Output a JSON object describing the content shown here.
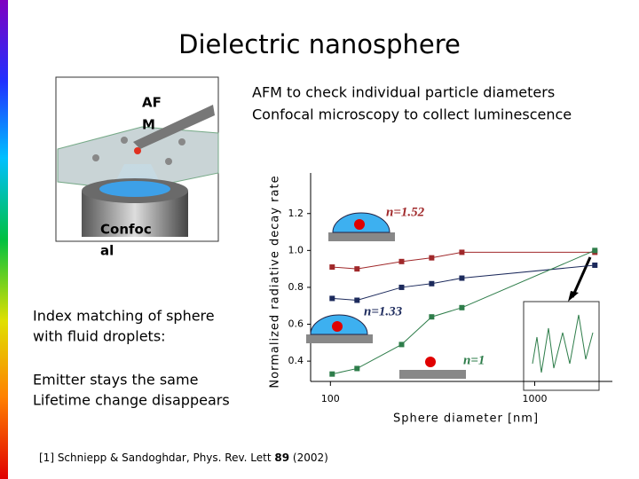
{
  "title": "Dielectric nanosphere",
  "bullets": [
    "AFM to check individual particle diameters",
    "Confocal microscopy to collect luminescence"
  ],
  "figure_labels": [
    "AF",
    "M",
    "Confoc",
    "al"
  ],
  "notes": [
    "Index matching of sphere",
    "with fluid droplets:",
    "Emitter stays the same",
    "Lifetime change disappears"
  ],
  "reference": {
    "text": "[1] Schniepp & Sandoghdar, Phys. Rev. Lett",
    "volume": "89",
    "year": "(2002)"
  },
  "chart_data": {
    "type": "scatter",
    "x_label": "Sphere diameter [nm]",
    "y_label": "Normalized radiative decay rate",
    "log_x": true,
    "xlim": [
      80,
      2400
    ],
    "ylim": [
      0.29,
      1.42
    ],
    "xticks": [
      100,
      1000
    ],
    "yticks": [
      0.4,
      0.6,
      0.8,
      {
        "value": 1,
        "label": "1.0"
      },
      1.2
    ],
    "series": [
      {
        "name": "n=1.52",
        "color": "#a0282a",
        "x": [
          102,
          135,
          223,
          313,
          440,
          1970
        ],
        "values": [
          0.91,
          0.9,
          0.94,
          0.96,
          0.99,
          0.99
        ]
      },
      {
        "name": "n=1.33",
        "color": "#1c2a5c",
        "x": [
          102,
          135,
          223,
          313,
          440,
          1970
        ],
        "values": [
          0.74,
          0.73,
          0.8,
          0.82,
          0.85,
          0.92
        ]
      },
      {
        "name": "n=1",
        "color": "#2e7d4a",
        "x": [
          102,
          135,
          223,
          313,
          440,
          1970
        ],
        "values": [
          0.33,
          0.36,
          0.49,
          0.64,
          0.69,
          1.0
        ]
      }
    ]
  }
}
